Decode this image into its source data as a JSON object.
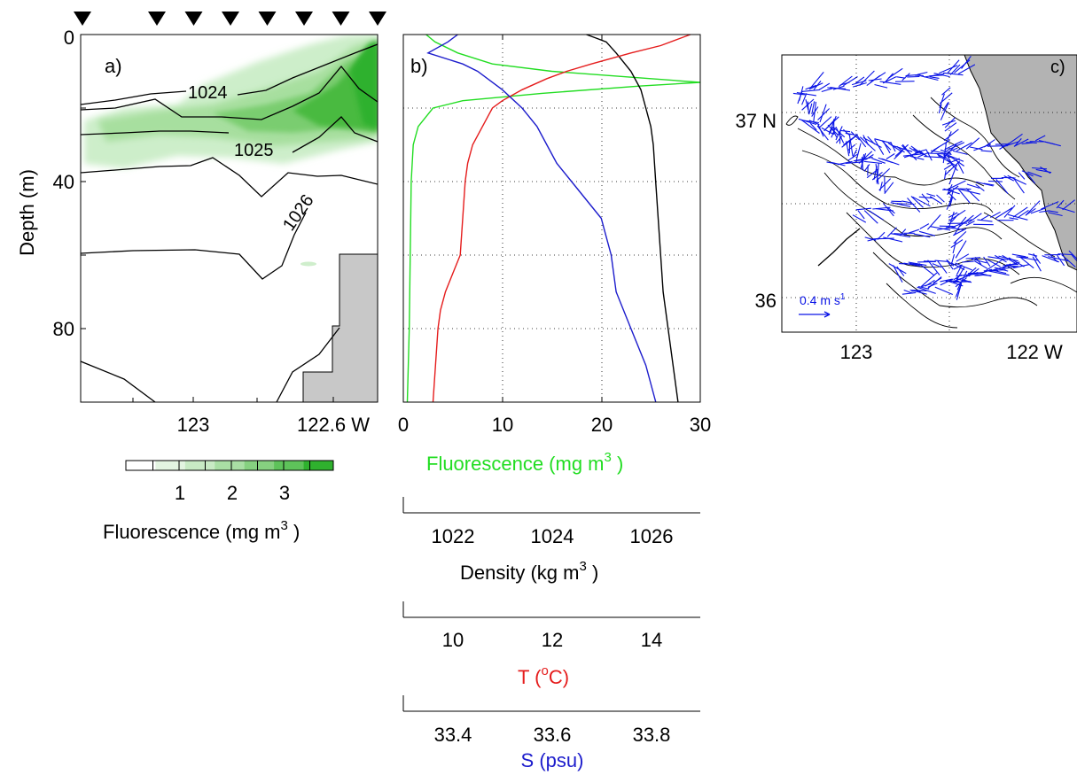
{
  "chart_data": [
    {
      "panel": "a",
      "type": "contour",
      "panel_label": "a)",
      "ylabel": "Depth  (m)",
      "yticks": [
        "0",
        "40",
        "80"
      ],
      "xticks": [
        "123",
        "122.6 W"
      ],
      "ylim": [
        0,
        100
      ],
      "y_reversed": true,
      "station_markers": 8,
      "contour_labels": [
        "1024",
        "1025",
        "1026"
      ],
      "colorbar": {
        "ticks": [
          "1",
          "2",
          "3"
        ],
        "label": "Fluorescence  (mg m",
        "label_sup": "3",
        "label_end": " )",
        "colors": [
          "#ffffff",
          "#e3f4e1",
          "#c8eac4",
          "#a9dea4",
          "#86d080",
          "#5ec25a",
          "#2fb12e"
        ]
      },
      "fill_color": "#33b233",
      "land_color": "#c8c8c8"
    },
    {
      "panel": "b",
      "type": "line",
      "panel_label": "b)",
      "ylim": [
        0,
        100
      ],
      "y_reversed": true,
      "axes": [
        {
          "name": "Fluorescence",
          "label": "Fluorescence  (mg m",
          "label_sup": "3",
          "label_end": "  )",
          "color": "#22dd22",
          "range": [
            0,
            30
          ],
          "ticks": [
            "0",
            "10",
            "20",
            "30"
          ]
        },
        {
          "name": "Density",
          "label": "Density  (kg m",
          "label_sup": "3",
          "label_end": "  )",
          "color": "#000000",
          "range": [
            1021,
            1027
          ],
          "ticks": [
            "1022",
            "1024",
            "1026"
          ]
        },
        {
          "name": "T",
          "label": "T  (",
          "label_sup": "o",
          "label_end": "C)",
          "color": "#e51c1c",
          "range": [
            9,
            15
          ],
          "ticks": [
            "10",
            "12",
            "14"
          ]
        },
        {
          "name": "S",
          "label": "S  (psu)",
          "color": "#1c1ccc",
          "range": [
            33.3,
            33.9
          ],
          "ticks": [
            "33.4",
            "33.6",
            "33.8"
          ]
        }
      ],
      "series": [
        {
          "name": "Fluorescence",
          "color": "#22dd22",
          "depth": [
            0,
            2,
            5,
            8,
            10,
            12,
            13,
            14,
            16,
            18,
            20,
            25,
            30,
            40,
            60,
            80,
            100
          ],
          "values": [
            2.3,
            3.2,
            5.5,
            9.0,
            15.0,
            25.0,
            30.0,
            24.0,
            14.0,
            6.0,
            3.0,
            1.5,
            1.0,
            0.8,
            0.7,
            0.6,
            0.4
          ]
        },
        {
          "name": "Density",
          "color": "#000000",
          "depth": [
            0,
            1,
            2,
            5,
            10,
            15,
            20,
            25,
            30,
            40,
            50,
            60,
            70,
            80,
            90,
            100
          ],
          "values": [
            1024.7,
            1024.9,
            1025.1,
            1025.3,
            1025.6,
            1025.8,
            1025.9,
            1026.0,
            1026.05,
            1026.1,
            1026.15,
            1026.2,
            1026.25,
            1026.35,
            1026.45,
            1026.55
          ]
        },
        {
          "name": "T",
          "color": "#e51c1c",
          "depth": [
            0,
            1,
            3,
            5,
            8,
            10,
            12,
            15,
            18,
            20,
            25,
            30,
            35,
            40,
            50,
            60,
            65,
            70,
            75,
            80,
            90,
            100
          ],
          "values": [
            14.8,
            14.6,
            14.2,
            13.6,
            12.8,
            12.3,
            11.9,
            11.4,
            11.0,
            10.8,
            10.6,
            10.4,
            10.3,
            10.25,
            10.2,
            10.15,
            10.0,
            9.85,
            9.75,
            9.7,
            9.65,
            9.6
          ]
        },
        {
          "name": "S",
          "color": "#1c1ccc",
          "depth": [
            0,
            2,
            5,
            8,
            10,
            15,
            20,
            25,
            30,
            35,
            40,
            50,
            55,
            60,
            70,
            80,
            90,
            100
          ],
          "values": [
            33.41,
            33.39,
            33.35,
            33.42,
            33.45,
            33.5,
            33.54,
            33.57,
            33.59,
            33.61,
            33.64,
            33.7,
            33.71,
            33.72,
            33.73,
            33.76,
            33.79,
            33.81
          ]
        }
      ]
    },
    {
      "panel": "c",
      "type": "vector_map",
      "panel_label": "c)",
      "yticks": [
        "37 N",
        "36"
      ],
      "xticks": [
        "123",
        "122 W"
      ],
      "scale_label": "0.4 m s",
      "scale_sup": "1",
      "vector_color": "#0a14e6",
      "land_color": "#b3b3b3"
    }
  ]
}
